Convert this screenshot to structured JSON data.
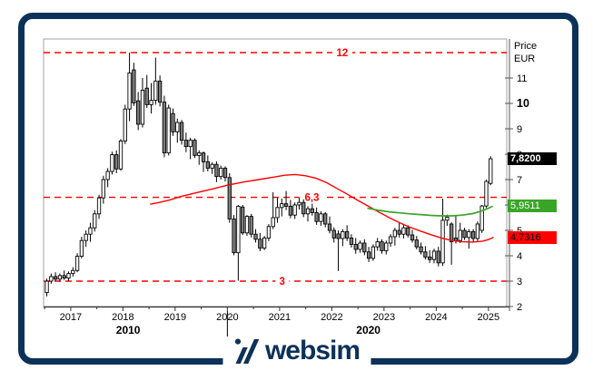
{
  "brand": {
    "logo_text": "websim",
    "navy": "#0d3259"
  },
  "price_axis": {
    "title_line1": "Price",
    "title_line2": "EUR",
    "ticks": [
      2,
      3,
      4,
      5,
      6,
      7,
      8,
      9,
      10,
      11
    ],
    "bold_tick": 10,
    "price_labels": [
      {
        "name": "last",
        "value": "7,8200",
        "bg": "#000000",
        "fg": "#ffffff",
        "y_value": 7.82
      },
      {
        "name": "green",
        "value": "5,9511",
        "bg": "#3aa428",
        "fg": "#ffffff",
        "y_value": 5.9511
      },
      {
        "name": "red",
        "value": "4,7316",
        "bg": "#ff0000",
        "fg": "#000000",
        "y_value": 4.7316
      }
    ]
  },
  "time_axis": {
    "years": [
      2017,
      2018,
      2019,
      2020,
      2021,
      2022,
      2023,
      2024,
      2025
    ],
    "decade_labels": [
      {
        "label": "2010",
        "center_year": 2018.1
      },
      {
        "label": "2020",
        "center_year": 2022.7
      }
    ],
    "decade_separator_year": 2020
  },
  "chart_data": {
    "type": "candlestick",
    "title": "",
    "xlabel": "",
    "ylabel": "Price EUR",
    "x_domain": [
      2016.48,
      2025.35
    ],
    "y_domain": [
      2,
      12.536
    ],
    "grid": false,
    "up_color": "#ffffff",
    "down_color": "#7d7d7d",
    "wick_color": "#000000",
    "hline_color": "#ff0000",
    "hlines": [
      {
        "value": 12,
        "label": "12",
        "label_year": 2022.2
      },
      {
        "value": 6.3,
        "label": "6,3",
        "label_year": 2021.62
      },
      {
        "value": 3,
        "label": "3",
        "label_year": 2021.05
      }
    ],
    "candles": [
      [
        "2016-07",
        2.55,
        3.1,
        2.4,
        3.0
      ],
      [
        "2016-08",
        3.0,
        3.3,
        2.9,
        3.18
      ],
      [
        "2016-09",
        3.18,
        3.35,
        3.0,
        3.08
      ],
      [
        "2016-10",
        3.08,
        3.3,
        2.98,
        3.22
      ],
      [
        "2016-11",
        3.22,
        3.42,
        3.05,
        3.12
      ],
      [
        "2016-12",
        3.12,
        3.38,
        3.0,
        3.3
      ],
      [
        "2017-01",
        3.3,
        3.55,
        3.18,
        3.42
      ],
      [
        "2017-02",
        3.42,
        4.1,
        3.35,
        3.98
      ],
      [
        "2017-03",
        3.98,
        4.75,
        3.9,
        4.6
      ],
      [
        "2017-04",
        4.6,
        5.0,
        4.35,
        4.85
      ],
      [
        "2017-05",
        4.85,
        5.3,
        4.55,
        5.1
      ],
      [
        "2017-06",
        5.1,
        5.8,
        4.95,
        5.65
      ],
      [
        "2017-07",
        5.65,
        6.4,
        5.45,
        6.28
      ],
      [
        "2017-08",
        6.28,
        7.15,
        6.05,
        7.0
      ],
      [
        "2017-09",
        7.0,
        7.45,
        6.7,
        7.32
      ],
      [
        "2017-10",
        7.32,
        8.1,
        7.2,
        7.98
      ],
      [
        "2017-11",
        7.98,
        8.15,
        7.25,
        7.42
      ],
      [
        "2017-12",
        7.42,
        8.6,
        7.35,
        8.52
      ],
      [
        "2018-01",
        8.52,
        9.95,
        8.4,
        9.78
      ],
      [
        "2018-02",
        9.78,
        12.0,
        9.3,
        11.2
      ],
      [
        "2018-03",
        11.32,
        11.6,
        9.9,
        10.02
      ],
      [
        "2018-04",
        10.1,
        10.45,
        8.95,
        9.18
      ],
      [
        "2018-05",
        9.18,
        11.0,
        9.05,
        10.52
      ],
      [
        "2018-06",
        10.6,
        11.12,
        9.82,
        9.95
      ],
      [
        "2018-07",
        9.95,
        10.8,
        9.6,
        10.12
      ],
      [
        "2018-08",
        10.12,
        11.8,
        9.95,
        10.88
      ],
      [
        "2018-09",
        10.88,
        11.1,
        9.88,
        10.05
      ],
      [
        "2018-10",
        10.05,
        10.3,
        7.88,
        8.05
      ],
      [
        "2018-11",
        8.05,
        9.95,
        7.95,
        9.82
      ],
      [
        "2018-12",
        9.6,
        9.8,
        8.72,
        8.88
      ],
      [
        "2019-01",
        8.88,
        9.4,
        8.45,
        9.25
      ],
      [
        "2019-02",
        9.25,
        9.35,
        8.38,
        8.55
      ],
      [
        "2019-03",
        8.55,
        8.85,
        8.08,
        8.3
      ],
      [
        "2019-04",
        8.3,
        8.65,
        7.8,
        8.55
      ],
      [
        "2019-05",
        8.55,
        8.62,
        7.85,
        7.95
      ],
      [
        "2019-06",
        7.95,
        8.15,
        7.58,
        8.05
      ],
      [
        "2019-07",
        8.05,
        8.1,
        7.3,
        7.7
      ],
      [
        "2019-08",
        7.7,
        7.95,
        7.32,
        7.45
      ],
      [
        "2019-09",
        7.45,
        7.68,
        7.22,
        7.6
      ],
      [
        "2019-10",
        7.6,
        7.72,
        6.9,
        7.12
      ],
      [
        "2019-11",
        7.12,
        7.55,
        7.0,
        7.45
      ],
      [
        "2019-12",
        7.45,
        7.52,
        6.92,
        7.08
      ],
      [
        "2020-01",
        7.08,
        7.25,
        5.3,
        5.45
      ],
      [
        "2020-02",
        5.45,
        5.6,
        4.02,
        4.12
      ],
      [
        "2020-03",
        4.12,
        6.0,
        3.02,
        5.95
      ],
      [
        "2020-04",
        5.92,
        6.0,
        4.82,
        4.9
      ],
      [
        "2020-05",
        4.9,
        5.6,
        4.78,
        5.55
      ],
      [
        "2020-06",
        5.55,
        5.65,
        4.72,
        4.85
      ],
      [
        "2020-07",
        4.85,
        5.05,
        4.52,
        4.65
      ],
      [
        "2020-08",
        4.65,
        4.9,
        4.18,
        4.3
      ],
      [
        "2020-09",
        4.3,
        4.78,
        4.22,
        4.7
      ],
      [
        "2020-10",
        4.7,
        5.25,
        4.58,
        5.15
      ],
      [
        "2020-11",
        5.15,
        6.5,
        5.05,
        5.5
      ],
      [
        "2020-12",
        5.5,
        6.28,
        5.3,
        5.9
      ],
      [
        "2021-01",
        5.9,
        6.25,
        5.55,
        6.05
      ],
      [
        "2021-02",
        6.05,
        6.55,
        5.8,
        5.95
      ],
      [
        "2021-03",
        5.95,
        6.2,
        5.48,
        5.6
      ],
      [
        "2021-04",
        5.6,
        6.1,
        5.45,
        6.0
      ],
      [
        "2021-05",
        6.0,
        6.3,
        5.82,
        6.1
      ],
      [
        "2021-06",
        6.1,
        6.22,
        5.52,
        5.65
      ],
      [
        "2021-07",
        5.65,
        5.95,
        5.35,
        5.85
      ],
      [
        "2021-08",
        5.85,
        6.05,
        5.58,
        5.7
      ],
      [
        "2021-09",
        5.7,
        5.9,
        5.22,
        5.35
      ],
      [
        "2021-10",
        5.35,
        5.75,
        5.18,
        5.65
      ],
      [
        "2021-11",
        5.65,
        5.72,
        5.12,
        5.25
      ],
      [
        "2021-12",
        5.25,
        5.55,
        4.88,
        5.0
      ],
      [
        "2022-01",
        5.0,
        5.12,
        4.52,
        4.7
      ],
      [
        "2022-02",
        4.86,
        5.0,
        3.4,
        4.68
      ],
      [
        "2022-03",
        4.68,
        5.05,
        4.38,
        4.95
      ],
      [
        "2022-04",
        4.95,
        5.2,
        4.58,
        4.7
      ],
      [
        "2022-05",
        4.7,
        4.85,
        4.32,
        4.45
      ],
      [
        "2022-06",
        4.45,
        4.7,
        4.08,
        4.25
      ],
      [
        "2022-07",
        4.25,
        4.6,
        4.12,
        4.5
      ],
      [
        "2022-08",
        4.5,
        4.65,
        4.02,
        4.15
      ],
      [
        "2022-09",
        4.15,
        4.35,
        3.75,
        3.9
      ],
      [
        "2022-10",
        3.9,
        4.45,
        3.8,
        4.35
      ],
      [
        "2022-11",
        4.35,
        4.7,
        4.2,
        4.55
      ],
      [
        "2022-12",
        4.55,
        4.65,
        4.08,
        4.2
      ],
      [
        "2023-01",
        4.2,
        4.6,
        4.05,
        4.5
      ],
      [
        "2023-02",
        4.5,
        4.85,
        4.35,
        4.75
      ],
      [
        "2023-03",
        4.75,
        5.1,
        4.4,
        5.0
      ],
      [
        "2023-04",
        5.0,
        5.3,
        4.72,
        4.85
      ],
      [
        "2023-05",
        4.85,
        5.25,
        4.68,
        5.1
      ],
      [
        "2023-06",
        5.1,
        5.2,
        4.72,
        4.82
      ],
      [
        "2023-07",
        4.82,
        5.02,
        4.52,
        4.62
      ],
      [
        "2023-08",
        4.62,
        4.78,
        4.25,
        4.35
      ],
      [
        "2023-09",
        4.35,
        4.52,
        4.05,
        4.15
      ],
      [
        "2023-10",
        4.15,
        4.38,
        3.85,
        3.95
      ],
      [
        "2023-11",
        3.95,
        4.22,
        3.72,
        3.85
      ],
      [
        "2023-12",
        3.85,
        4.28,
        3.7,
        4.18
      ],
      [
        "2024-01",
        4.18,
        4.35,
        3.58,
        3.72
      ],
      [
        "2024-02",
        3.72,
        6.25,
        3.6,
        5.4
      ],
      [
        "2024-03",
        5.4,
        5.62,
        5.18,
        5.52
      ],
      [
        "2024-04",
        5.25,
        5.32,
        3.65,
        4.55
      ],
      [
        "2024-05",
        4.7,
        5.6,
        4.48,
        4.6
      ],
      [
        "2024-06",
        4.6,
        5.3,
        4.5,
        5.0
      ],
      [
        "2024-07",
        5.0,
        5.1,
        4.62,
        4.72
      ],
      [
        "2024-08",
        4.72,
        5.05,
        4.28,
        4.95
      ],
      [
        "2024-09",
        4.95,
        5.05,
        4.52,
        4.68
      ],
      [
        "2024-10",
        4.68,
        5.35,
        4.58,
        5.25
      ],
      [
        "2024-11",
        5.0,
        6.0,
        4.9,
        5.96
      ],
      [
        "2024-12",
        5.96,
        7.0,
        5.88,
        6.93
      ],
      [
        "2025-01",
        6.85,
        7.92,
        6.78,
        7.82
      ]
    ],
    "series": [
      {
        "name": "long-moving-average",
        "color": "#ff0000",
        "points": [
          [
            2018.52,
            6.03
          ],
          [
            2018.7,
            6.1
          ],
          [
            2018.9,
            6.2
          ],
          [
            2019.1,
            6.33
          ],
          [
            2019.4,
            6.48
          ],
          [
            2019.7,
            6.62
          ],
          [
            2020.0,
            6.78
          ],
          [
            2020.3,
            6.9
          ],
          [
            2020.6,
            7.0
          ],
          [
            2020.9,
            7.1
          ],
          [
            2021.1,
            7.17
          ],
          [
            2021.3,
            7.2
          ],
          [
            2021.5,
            7.15
          ],
          [
            2021.7,
            7.05
          ],
          [
            2021.9,
            6.88
          ],
          [
            2022.1,
            6.65
          ],
          [
            2022.3,
            6.42
          ],
          [
            2022.5,
            6.18
          ],
          [
            2022.7,
            5.95
          ],
          [
            2022.9,
            5.72
          ],
          [
            2023.1,
            5.5
          ],
          [
            2023.3,
            5.3
          ],
          [
            2023.5,
            5.12
          ],
          [
            2023.7,
            4.97
          ],
          [
            2023.9,
            4.83
          ],
          [
            2024.1,
            4.7
          ],
          [
            2024.3,
            4.6
          ],
          [
            2024.5,
            4.55
          ],
          [
            2024.7,
            4.54
          ],
          [
            2024.9,
            4.58
          ],
          [
            2025.0,
            4.64
          ],
          [
            2025.1,
            4.73
          ]
        ]
      },
      {
        "name": "short-moving-average",
        "color": "#3aa428",
        "points": [
          [
            2022.68,
            5.87
          ],
          [
            2022.9,
            5.79
          ],
          [
            2023.1,
            5.73
          ],
          [
            2023.3,
            5.69
          ],
          [
            2023.5,
            5.65
          ],
          [
            2023.7,
            5.62
          ],
          [
            2023.9,
            5.59
          ],
          [
            2024.1,
            5.57
          ],
          [
            2024.3,
            5.57
          ],
          [
            2024.5,
            5.6
          ],
          [
            2024.7,
            5.66
          ],
          [
            2024.85,
            5.75
          ],
          [
            2025.0,
            5.87
          ],
          [
            2025.08,
            5.95
          ]
        ]
      }
    ]
  }
}
